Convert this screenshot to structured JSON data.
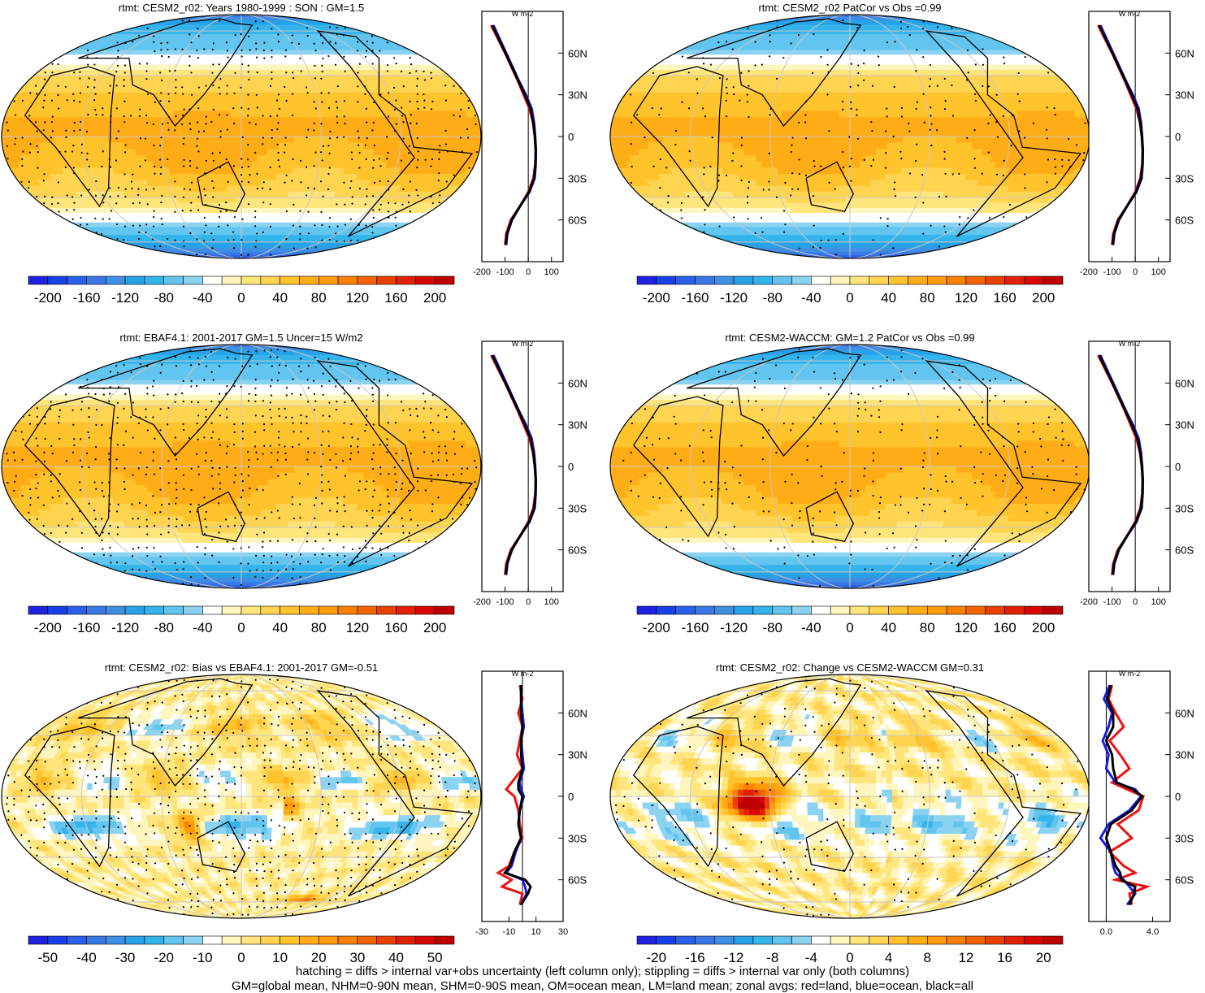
{
  "chart_data": [
    {
      "type": "heatmap",
      "panel": "map",
      "title": "rtmt: CESM2_r02: Years 1980-1999 : SON : GM=1.5",
      "colorbar": {
        "min": -220,
        "max": 220,
        "step": 20,
        "tick_labels": [
          "-200",
          "-160",
          "-120",
          "-80",
          "-40",
          "0",
          "40",
          "80",
          "120",
          "160",
          "200"
        ]
      },
      "field": "mean",
      "zonal_profile": {
        "xlim": [
          -200,
          150
        ],
        "x_ticks": [
          "-200",
          "-100",
          "0",
          "100"
        ],
        "y_ticks": [
          "60N",
          "30N",
          "0",
          "30S",
          "60S"
        ],
        "units": "W m-2",
        "lat": [
          80,
          60,
          40,
          30,
          20,
          10,
          0,
          -10,
          -20,
          -30,
          -40,
          -50,
          -60,
          -70,
          -78
        ],
        "land": [
          -160,
          -100,
          -45,
          -20,
          5,
          20,
          28,
          32,
          30,
          22,
          0,
          -35,
          -75,
          -95,
          -100
        ],
        "ocean": [
          -150,
          -95,
          -40,
          -10,
          15,
          25,
          30,
          33,
          32,
          28,
          5,
          -35,
          -70,
          -90,
          -95
        ],
        "all": [
          -155,
          -98,
          -42,
          -15,
          10,
          22,
          29,
          32,
          31,
          25,
          3,
          -35,
          -72,
          -92,
          -97
        ]
      }
    },
    {
      "type": "heatmap",
      "panel": "map",
      "title": "rtmt: CESM2_r02 PatCor vs Obs =0.99",
      "colorbar": {
        "min": -220,
        "max": 220,
        "step": 20,
        "tick_labels": [
          "-200",
          "-160",
          "-120",
          "-80",
          "-40",
          "0",
          "40",
          "80",
          "120",
          "160",
          "200"
        ]
      },
      "field": "mean",
      "zonal_profile": {
        "xlim": [
          -200,
          150
        ],
        "x_ticks": [
          "-200",
          "-100",
          "0",
          "100"
        ],
        "y_ticks": [
          "60N",
          "30N",
          "0",
          "30S",
          "60S"
        ],
        "units": "W m-2",
        "lat": [
          80,
          60,
          40,
          30,
          20,
          10,
          0,
          -10,
          -20,
          -30,
          -40,
          -50,
          -60,
          -70,
          -78
        ],
        "land": [
          -160,
          -100,
          -45,
          -20,
          5,
          20,
          28,
          32,
          30,
          22,
          0,
          -35,
          -75,
          -95,
          -100
        ],
        "ocean": [
          -150,
          -95,
          -40,
          -10,
          15,
          25,
          30,
          33,
          32,
          28,
          5,
          -35,
          -70,
          -90,
          -95
        ],
        "all": [
          -155,
          -98,
          -42,
          -15,
          10,
          22,
          29,
          32,
          31,
          25,
          3,
          -35,
          -72,
          -92,
          -97
        ]
      }
    },
    {
      "type": "heatmap",
      "panel": "map",
      "title": "rtmt: EBAF4.1: 2001-2017 GM=1.5 Uncer=15 W/m2",
      "colorbar": {
        "min": -220,
        "max": 220,
        "step": 20,
        "tick_labels": [
          "-200",
          "-160",
          "-120",
          "-80",
          "-40",
          "0",
          "40",
          "80",
          "120",
          "160",
          "200"
        ]
      },
      "field": "mean",
      "zonal_profile": {
        "xlim": [
          -200,
          150
        ],
        "x_ticks": [
          "-200",
          "-100",
          "0",
          "100"
        ],
        "y_ticks": [
          "60N",
          "30N",
          "0",
          "30S",
          "60S"
        ],
        "units": "W m-2",
        "lat": [
          80,
          60,
          40,
          30,
          20,
          10,
          0,
          -10,
          -20,
          -30,
          -40,
          -50,
          -60,
          -70,
          -78
        ],
        "land": [
          -160,
          -100,
          -45,
          -20,
          5,
          20,
          28,
          32,
          30,
          22,
          0,
          -35,
          -75,
          -95,
          -100
        ],
        "ocean": [
          -150,
          -95,
          -40,
          -10,
          15,
          25,
          30,
          33,
          32,
          28,
          5,
          -35,
          -70,
          -90,
          -95
        ],
        "all": [
          -155,
          -98,
          -42,
          -15,
          10,
          22,
          29,
          32,
          31,
          25,
          3,
          -35,
          -72,
          -92,
          -97
        ]
      }
    },
    {
      "type": "heatmap",
      "panel": "map",
      "title": "rtmt: CESM2-WACCM: GM=1.2 PatCor vs Obs =0.99",
      "colorbar": {
        "min": -220,
        "max": 220,
        "step": 20,
        "tick_labels": [
          "-200",
          "-160",
          "-120",
          "-80",
          "-40",
          "0",
          "40",
          "80",
          "120",
          "160",
          "200"
        ]
      },
      "field": "mean",
      "zonal_profile": {
        "xlim": [
          -200,
          150
        ],
        "x_ticks": [
          "-200",
          "-100",
          "0",
          "100"
        ],
        "y_ticks": [
          "60N",
          "30N",
          "0",
          "30S",
          "60S"
        ],
        "units": "W m-2",
        "lat": [
          80,
          60,
          40,
          30,
          20,
          10,
          0,
          -10,
          -20,
          -30,
          -40,
          -50,
          -60,
          -70,
          -78
        ],
        "land": [
          -160,
          -100,
          -45,
          -20,
          5,
          20,
          28,
          32,
          30,
          22,
          0,
          -35,
          -75,
          -95,
          -100
        ],
        "ocean": [
          -150,
          -95,
          -40,
          -10,
          15,
          25,
          30,
          33,
          32,
          28,
          5,
          -35,
          -70,
          -90,
          -95
        ],
        "all": [
          -155,
          -98,
          -42,
          -15,
          10,
          22,
          29,
          32,
          31,
          25,
          3,
          -35,
          -72,
          -92,
          -97
        ]
      }
    },
    {
      "type": "heatmap",
      "panel": "map",
      "title": "rtmt: CESM2_r02: Bias vs EBAF4.1: 2001-2017  GM=-0.51",
      "colorbar": {
        "min": -55,
        "max": 55,
        "step": 5,
        "tick_labels": [
          "-50",
          "-40",
          "-30",
          "-20",
          "-10",
          "0",
          "10",
          "20",
          "30",
          "40",
          "50"
        ]
      },
      "field": "bias",
      "zonal_profile": {
        "xlim": [
          -30,
          30
        ],
        "x_ticks": [
          "-30",
          "-10",
          "10",
          "30"
        ],
        "y_ticks": [
          "60N",
          "30N",
          "0",
          "30S",
          "60S"
        ],
        "units": "W m-2",
        "lat": [
          80,
          70,
          60,
          50,
          40,
          30,
          20,
          10,
          5,
          0,
          -10,
          -20,
          -30,
          -40,
          -50,
          -55,
          -60,
          -65,
          -70,
          -78
        ],
        "land": [
          -2,
          0,
          -3,
          0,
          -2,
          -4,
          0,
          -8,
          -12,
          -6,
          -3,
          -2,
          0,
          -6,
          -10,
          -18,
          -8,
          -15,
          0,
          -2
        ],
        "ocean": [
          -1,
          -1,
          0,
          1,
          -1,
          0,
          1,
          -2,
          -1,
          1,
          -2,
          -3,
          -1,
          -5,
          -8,
          -12,
          0,
          2,
          3,
          -1
        ],
        "all": [
          -1,
          -1,
          -1,
          0,
          -1,
          -1,
          0,
          -3,
          -3,
          0,
          -2,
          -3,
          -1,
          -6,
          -9,
          -13,
          2,
          6,
          4,
          -1
        ]
      }
    },
    {
      "type": "heatmap",
      "panel": "map",
      "title": "rtmt: CESM2_r02: Change vs CESM2-WACCM GM=0.31",
      "colorbar": {
        "min": -22,
        "max": 22,
        "step": 2,
        "tick_labels": [
          "-20",
          "-16",
          "-12",
          "-8",
          "-4",
          "0",
          "4",
          "8",
          "12",
          "16",
          "20"
        ]
      },
      "field": "change",
      "zonal_profile": {
        "xlim": [
          -1.5,
          5.5
        ],
        "x_ticks": [
          "0.0",
          "4.0"
        ],
        "y_ticks": [
          "60N",
          "30N",
          "0",
          "30S",
          "60S"
        ],
        "units": "W m-2",
        "lat": [
          80,
          70,
          60,
          50,
          40,
          30,
          20,
          10,
          5,
          0,
          -10,
          -20,
          -30,
          -40,
          -50,
          -55,
          -60,
          -65,
          -70,
          -78
        ],
        "land": [
          0.5,
          0.2,
          0.8,
          1.5,
          0.3,
          1.2,
          2.0,
          0.5,
          1.8,
          3.2,
          2.8,
          1.0,
          2.2,
          0.3,
          1.5,
          2.5,
          0.8,
          3.5,
          2.0,
          2.2
        ],
        "ocean": [
          0.3,
          -0.2,
          0.5,
          0.2,
          -0.3,
          0.2,
          0.0,
          0.8,
          2.5,
          3.0,
          2.0,
          0.2,
          -0.5,
          0.4,
          0.6,
          0.8,
          1.5,
          2.0,
          2.5,
          1.8
        ],
        "all": [
          0.4,
          0.1,
          0.6,
          0.6,
          0.0,
          0.5,
          0.6,
          0.9,
          2.3,
          3.1,
          2.2,
          0.4,
          0.0,
          0.4,
          0.8,
          1.2,
          1.3,
          2.5,
          2.4,
          2.0
        ]
      }
    }
  ],
  "footer": {
    "line1": "hatching = diffs > internal var+obs uncertainty (left column only); stippling = diffs > internal var only (both columns)",
    "line2": "GM=global mean, NHM=0-90N mean, SHM=0-90S mean, OM=ocean mean, LM=land mean; zonal avgs: red=land, blue=ocean, black=all"
  },
  "colors": {
    "land_line": "#ee1111",
    "ocean_line": "#1a1ae6",
    "all_line": "#000000",
    "palette": [
      "#2020e0",
      "#1740e8",
      "#2a60e8",
      "#3a78e6",
      "#3f8fe4",
      "#27a2e8",
      "#35b4ec",
      "#62c5ef",
      "#8bd3f1",
      "#ffffff",
      "#fff6bf",
      "#ffe57c",
      "#ffd450",
      "#ffc32c",
      "#ffad16",
      "#ff9a0a",
      "#fa8006",
      "#f26404",
      "#ea4004",
      "#e31f05",
      "#d80505",
      "#bd0000"
    ]
  }
}
